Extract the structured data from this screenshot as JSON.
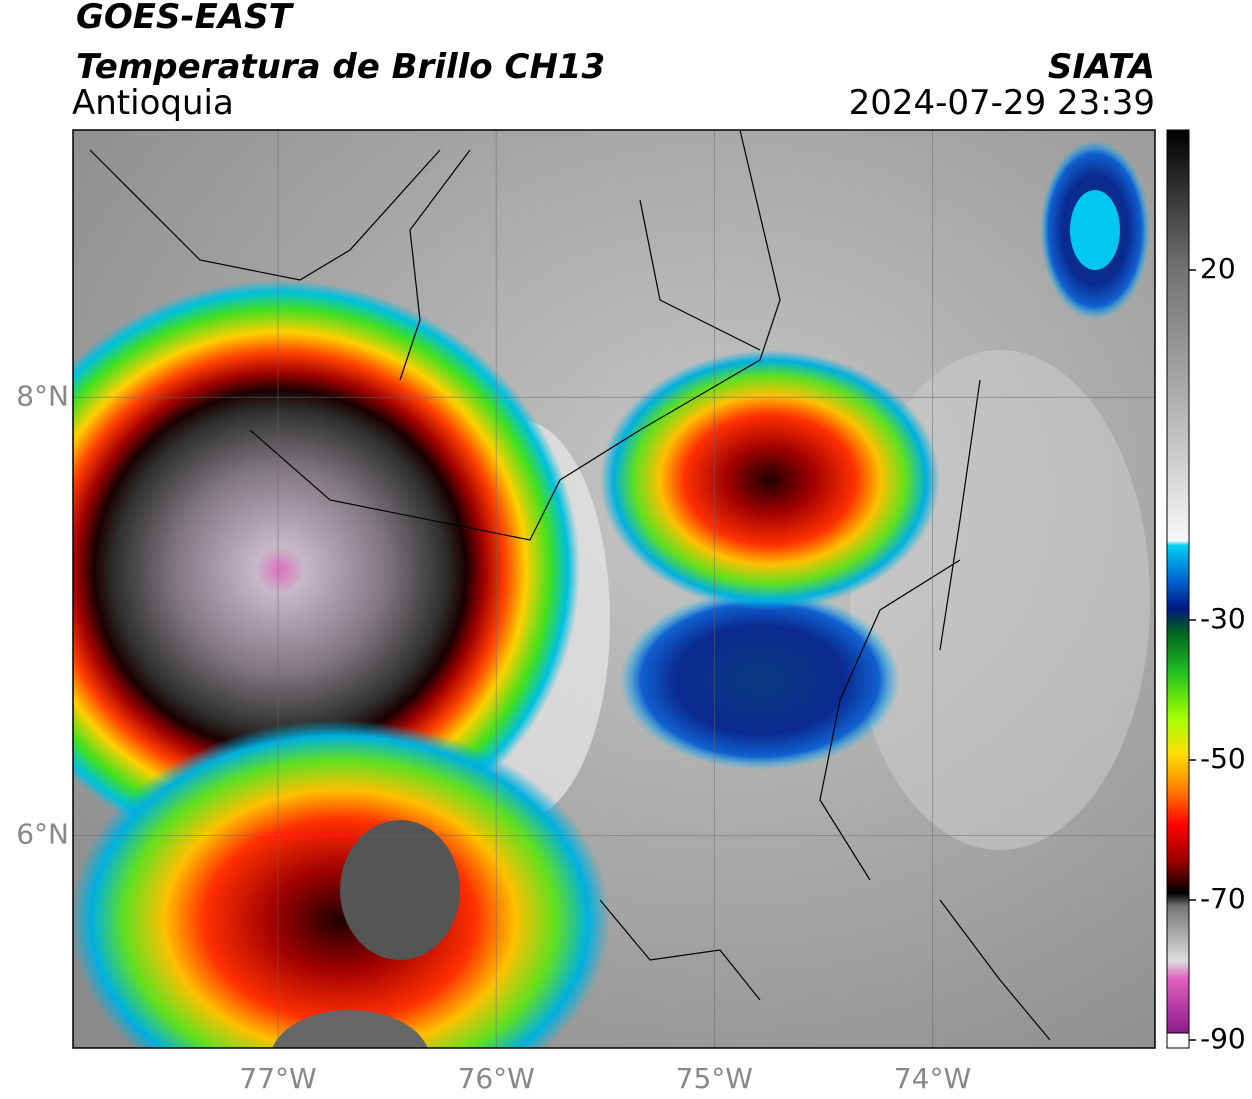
{
  "header": {
    "title": "GOES-EAST",
    "subtitle": "Temperatura de Brillo CH13",
    "region": "Antioquia",
    "source": "SIATA",
    "datetime": "2024-07-29 23:39"
  },
  "map": {
    "lon_range": [
      -77.94,
      -72.98
    ],
    "lat_range": [
      5.03,
      9.22
    ],
    "lat_ticks": [
      {
        "value": 8,
        "label": "8°N"
      },
      {
        "value": 6,
        "label": "6°N"
      }
    ],
    "lon_ticks": [
      {
        "value": -77,
        "label": "77°W"
      },
      {
        "value": -76,
        "label": "76°W"
      },
      {
        "value": -75,
        "label": "75°W"
      },
      {
        "value": -74,
        "label": "74°W"
      }
    ]
  },
  "colorbar": {
    "range": [
      -90,
      40
    ],
    "ticks": [
      20,
      -30,
      -50,
      -70,
      -90
    ]
  }
}
